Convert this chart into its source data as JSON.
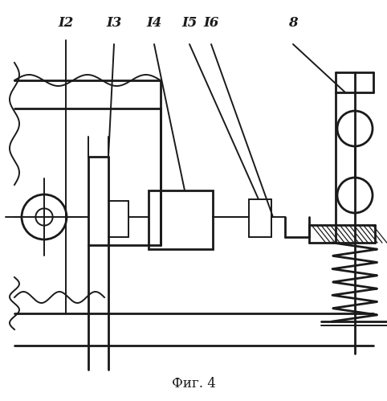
{
  "title": "Фиг. 4",
  "labels": [
    "I2",
    "I3",
    "I4",
    "I5",
    "I6",
    "8"
  ],
  "bg_color": "#ffffff",
  "line_color": "#1a1a1a",
  "lw": 1.4,
  "lw2": 2.0
}
